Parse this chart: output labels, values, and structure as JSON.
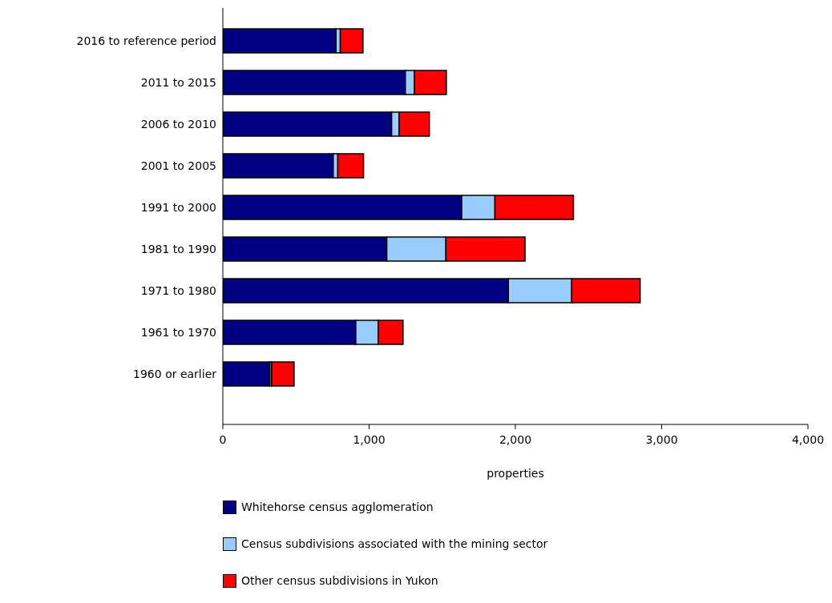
{
  "chart_data": {
    "type": "bar",
    "orientation": "horizontal",
    "stacked": true,
    "xlabel": "properties",
    "categories": [
      "2016 to reference period",
      "2011 to 2015",
      "2006 to 2010",
      "2001 to 2005",
      "1991 to 2000",
      "1981 to 1990",
      "1971 to 1980",
      "1961 to 1970",
      "1960 or earlier"
    ],
    "series": [
      {
        "name": "Whitehorse census agglomeration",
        "color": "#000080",
        "values": [
          774,
          1248,
          1154,
          755,
          1633,
          1121,
          1952,
          909,
          322
        ]
      },
      {
        "name": "Census subdivisions associated with the mining sector",
        "color": "#99ccff",
        "values": [
          29,
          62,
          51,
          31,
          227,
          404,
          433,
          153,
          12
        ]
      },
      {
        "name": "Other census subdivisions in Yukon",
        "color": "#ff0000",
        "values": [
          155,
          218,
          207,
          176,
          537,
          541,
          468,
          170,
          153
        ]
      }
    ],
    "xlim": [
      0,
      4000
    ],
    "xticks": [
      0,
      {
        "value": 1000,
        "label": "1,000"
      },
      {
        "value": 2000,
        "label": "2,000"
      },
      {
        "value": 3000,
        "label": "3,000"
      },
      {
        "value": 4000,
        "label": "4,000"
      }
    ],
    "grid": false,
    "legend": "bottom"
  }
}
